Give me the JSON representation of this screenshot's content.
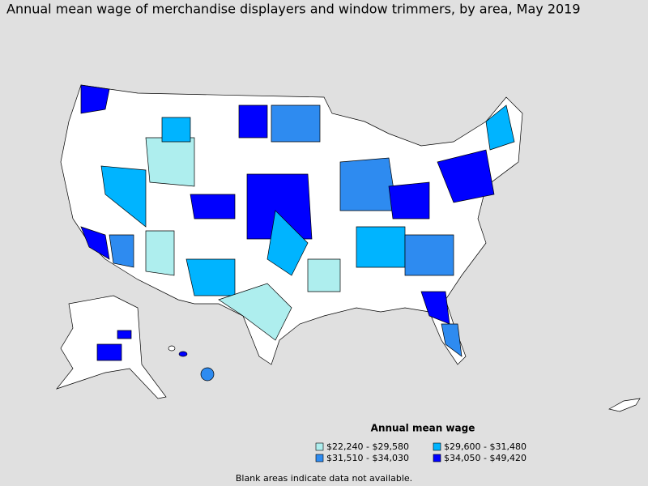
{
  "title": "Annual mean wage of merchandise displayers and window trimmers, by area, May 2019",
  "legend": {
    "title": "Annual mean wage",
    "items": [
      {
        "label": "$22,240 - $29,580",
        "color": "#aeeeee"
      },
      {
        "label": "$31,510 - $34,030",
        "color": "#2e8bf0"
      },
      {
        "label": "$29,600 - $31,480",
        "color": "#00b4ff"
      },
      {
        "label": "$34,050 - $49,420",
        "color": "#0000ff"
      }
    ]
  },
  "note": "Blank areas indicate data not available."
}
